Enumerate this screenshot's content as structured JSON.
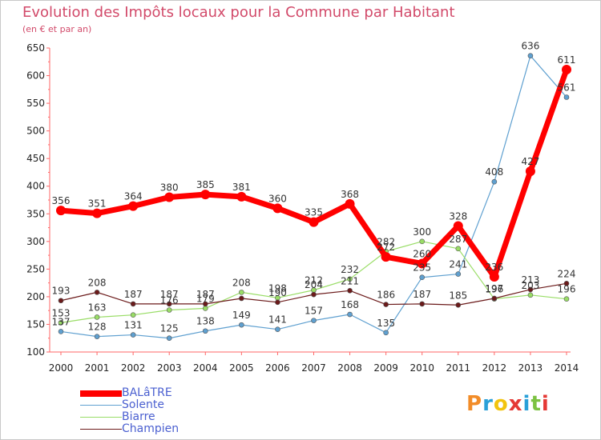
{
  "header": {
    "title": "Evolution des Impôts locaux pour la Commune par Habitant",
    "subtitle": "(en € et par an)"
  },
  "logo": {
    "text": "Proxiti"
  },
  "chart_data": {
    "type": "line",
    "title": "Evolution des Impôts locaux pour la Commune par Habitant",
    "subtitle": "(en € et par an)",
    "xlabel": "",
    "ylabel": "",
    "x": [
      "2000",
      "2001",
      "2002",
      "2003",
      "2004",
      "2005",
      "2006",
      "2007",
      "2008",
      "2009",
      "2010",
      "2011",
      "2012",
      "2013",
      "2014"
    ],
    "ylim": [
      100,
      650
    ],
    "yticks": [
      100,
      150,
      200,
      250,
      300,
      350,
      400,
      450,
      500,
      550,
      600,
      650
    ],
    "grid": false,
    "legend_position": "bottom-left",
    "series": [
      {
        "name": "BALâTRE",
        "color": "#ff0000",
        "values": [
          356,
          351,
          364,
          380,
          385,
          381,
          360,
          335,
          368,
          272,
          260,
          328,
          236,
          427,
          611
        ],
        "labels": [
          "356",
          "351",
          "364",
          "380",
          "385",
          "381",
          "360",
          "335",
          "368",
          "272",
          "260",
          "328",
          "236",
          "427",
          "611"
        ]
      },
      {
        "name": "Solente",
        "color": "#5fa0d0",
        "values": [
          137,
          128,
          131,
          125,
          138,
          149,
          141,
          157,
          168,
          135,
          235,
          241,
          408,
          636,
          561
        ],
        "labels": [
          "137",
          "128",
          "131",
          "125",
          "138",
          "149",
          "141",
          "157",
          "168",
          "135",
          "235",
          "241",
          "408",
          "636",
          "561"
        ]
      },
      {
        "name": "Biarre",
        "color": "#99dd66",
        "values": [
          153,
          163,
          167,
          176,
          179,
          208,
          198,
          212,
          232,
          282,
          300,
          287,
          196,
          203,
          196
        ],
        "labels": [
          "153",
          "163",
          "",
          "176",
          "179",
          "208",
          "198",
          "212",
          "232",
          "282",
          "300",
          "287",
          "196",
          "203",
          "196"
        ]
      },
      {
        "name": "Champien",
        "color": "#6b1a1a",
        "values": [
          193,
          208,
          187,
          187,
          187,
          197,
          190,
          204,
          211,
          186,
          187,
          185,
          197,
          213,
          224
        ],
        "labels": [
          "193",
          "208",
          "187",
          "187",
          "187",
          "",
          "190",
          "204",
          "211",
          "186",
          "187",
          "185",
          "197",
          "213",
          "224"
        ]
      }
    ]
  }
}
